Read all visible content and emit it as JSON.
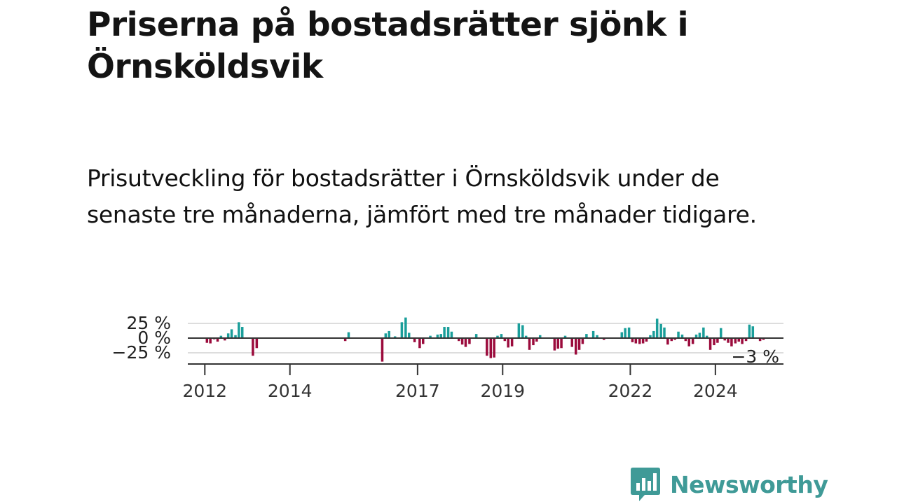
{
  "title": "Priserna på bostadsrätter sjönk i Örnsköldsvik",
  "subtitle": "Prisutveckling för bostadsrätter i Örnsköldsvik under de senaste tre månaderna, jämfört med tre månader tidigare.",
  "brand": {
    "name": "Newsworthy",
    "icon": "bar-chart-speech-bubble-icon",
    "color": "#3f9a97"
  },
  "colors": {
    "positive": "#1a9e9a",
    "negative": "#9b0b3c",
    "axis": "#333333",
    "grid": "#dddddd"
  },
  "chart_data": {
    "type": "bar",
    "y_ticks": [
      {
        "value": 25,
        "label": "25 %"
      },
      {
        "value": 0,
        "label": "0 %"
      },
      {
        "value": -25,
        "label": "−25 %"
      }
    ],
    "ylim": [
      -45,
      30
    ],
    "x_ticks": [
      {
        "value": 2012,
        "label": "2012"
      },
      {
        "value": 2014,
        "label": "2014"
      },
      {
        "value": 2017,
        "label": "2017"
      },
      {
        "value": 2019,
        "label": "2019"
      },
      {
        "value": 2022,
        "label": "2022"
      },
      {
        "value": 2024,
        "label": "2024"
      }
    ],
    "xlim": [
      2011.6,
      2025.6
    ],
    "last_label": "−3 %",
    "series": [
      {
        "points": [
          {
            "x": 2012.05,
            "y": -8
          },
          {
            "x": 2012.13,
            "y": -9
          },
          {
            "x": 2012.22,
            "y": -2
          },
          {
            "x": 2012.3,
            "y": -6
          },
          {
            "x": 2012.38,
            "y": 4
          },
          {
            "x": 2012.47,
            "y": -4
          },
          {
            "x": 2012.55,
            "y": 8
          },
          {
            "x": 2012.63,
            "y": 15
          },
          {
            "x": 2012.72,
            "y": 5
          },
          {
            "x": 2012.8,
            "y": 27
          },
          {
            "x": 2012.88,
            "y": 19
          },
          {
            "x": 2013.13,
            "y": -30
          },
          {
            "x": 2013.22,
            "y": -17
          },
          {
            "x": 2015.3,
            "y": -5
          },
          {
            "x": 2015.38,
            "y": 10
          },
          {
            "x": 2016.17,
            "y": -40
          },
          {
            "x": 2016.25,
            "y": 8
          },
          {
            "x": 2016.33,
            "y": 12
          },
          {
            "x": 2016.47,
            "y": 3
          },
          {
            "x": 2016.63,
            "y": 27
          },
          {
            "x": 2016.72,
            "y": 35
          },
          {
            "x": 2016.8,
            "y": 9
          },
          {
            "x": 2016.93,
            "y": -7
          },
          {
            "x": 2017.05,
            "y": -17
          },
          {
            "x": 2017.13,
            "y": -10
          },
          {
            "x": 2017.3,
            "y": 4
          },
          {
            "x": 2017.47,
            "y": 6
          },
          {
            "x": 2017.55,
            "y": 7
          },
          {
            "x": 2017.63,
            "y": 19
          },
          {
            "x": 2017.72,
            "y": 19
          },
          {
            "x": 2017.8,
            "y": 11
          },
          {
            "x": 2017.97,
            "y": -5
          },
          {
            "x": 2018.05,
            "y": -11
          },
          {
            "x": 2018.13,
            "y": -15
          },
          {
            "x": 2018.22,
            "y": -10
          },
          {
            "x": 2018.38,
            "y": 7
          },
          {
            "x": 2018.63,
            "y": -30
          },
          {
            "x": 2018.72,
            "y": -34
          },
          {
            "x": 2018.8,
            "y": -33
          },
          {
            "x": 2018.88,
            "y": 4
          },
          {
            "x": 2018.97,
            "y": 7
          },
          {
            "x": 2019.05,
            "y": -5
          },
          {
            "x": 2019.13,
            "y": -16
          },
          {
            "x": 2019.22,
            "y": -14
          },
          {
            "x": 2019.38,
            "y": 25
          },
          {
            "x": 2019.47,
            "y": 22
          },
          {
            "x": 2019.55,
            "y": 4
          },
          {
            "x": 2019.63,
            "y": -20
          },
          {
            "x": 2019.72,
            "y": -12
          },
          {
            "x": 2019.8,
            "y": -6
          },
          {
            "x": 2019.88,
            "y": 5
          },
          {
            "x": 2020.22,
            "y": -21
          },
          {
            "x": 2020.3,
            "y": -18
          },
          {
            "x": 2020.38,
            "y": -17
          },
          {
            "x": 2020.47,
            "y": 4
          },
          {
            "x": 2020.63,
            "y": -15
          },
          {
            "x": 2020.72,
            "y": -28
          },
          {
            "x": 2020.8,
            "y": -20
          },
          {
            "x": 2020.88,
            "y": -10
          },
          {
            "x": 2020.97,
            "y": 7
          },
          {
            "x": 2021.13,
            "y": 12
          },
          {
            "x": 2021.22,
            "y": 5
          },
          {
            "x": 2021.38,
            "y": -3
          },
          {
            "x": 2021.8,
            "y": 10
          },
          {
            "x": 2021.88,
            "y": 17
          },
          {
            "x": 2021.97,
            "y": 18
          },
          {
            "x": 2022.05,
            "y": -7
          },
          {
            "x": 2022.13,
            "y": -9
          },
          {
            "x": 2022.22,
            "y": -10
          },
          {
            "x": 2022.3,
            "y": -9
          },
          {
            "x": 2022.38,
            "y": -6
          },
          {
            "x": 2022.47,
            "y": 5
          },
          {
            "x": 2022.55,
            "y": 12
          },
          {
            "x": 2022.63,
            "y": 33
          },
          {
            "x": 2022.72,
            "y": 24
          },
          {
            "x": 2022.8,
            "y": 18
          },
          {
            "x": 2022.88,
            "y": -11
          },
          {
            "x": 2022.97,
            "y": -5
          },
          {
            "x": 2023.05,
            "y": -3
          },
          {
            "x": 2023.13,
            "y": 11
          },
          {
            "x": 2023.22,
            "y": 6
          },
          {
            "x": 2023.3,
            "y": -5
          },
          {
            "x": 2023.38,
            "y": -14
          },
          {
            "x": 2023.47,
            "y": -10
          },
          {
            "x": 2023.55,
            "y": 6
          },
          {
            "x": 2023.63,
            "y": 9
          },
          {
            "x": 2023.72,
            "y": 18
          },
          {
            "x": 2023.8,
            "y": 4
          },
          {
            "x": 2023.88,
            "y": -20
          },
          {
            "x": 2023.97,
            "y": -12
          },
          {
            "x": 2024.05,
            "y": -8
          },
          {
            "x": 2024.13,
            "y": 17
          },
          {
            "x": 2024.22,
            "y": -4
          },
          {
            "x": 2024.3,
            "y": -8
          },
          {
            "x": 2024.38,
            "y": -14
          },
          {
            "x": 2024.47,
            "y": -9
          },
          {
            "x": 2024.55,
            "y": -6
          },
          {
            "x": 2024.63,
            "y": -10
          },
          {
            "x": 2024.72,
            "y": -5
          },
          {
            "x": 2024.8,
            "y": 23
          },
          {
            "x": 2024.88,
            "y": 20
          },
          {
            "x": 2025.05,
            "y": -5
          },
          {
            "x": 2025.13,
            "y": -3
          }
        ]
      }
    ]
  }
}
